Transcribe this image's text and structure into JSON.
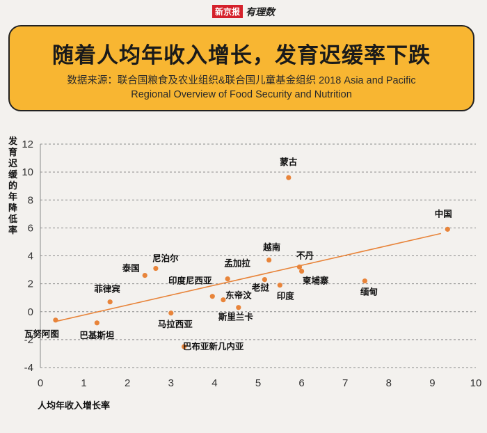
{
  "logo": {
    "brand": "新京报",
    "sub": "有理数"
  },
  "header": {
    "title": "随着人均年收入增长，发育迟缓率下跌",
    "source_line1": "数据来源：联合国粮食及农业组织&联合国儿童基金组织  2018 Asia and Pacific",
    "source_line2": "Regional Overview of Food Security and Nutrition"
  },
  "colors": {
    "point": "#e8843a",
    "trend": "#e8843a",
    "header_bg": "#f8b632",
    "page_bg": "#f3f1ee"
  },
  "chart_data": {
    "type": "scatter",
    "xlabel": "人均年收入增长率",
    "ylabel": "发育迟缓的年降低率",
    "xlim": [
      0,
      10
    ],
    "ylim": [
      -4,
      12
    ],
    "xticks": [
      0,
      1,
      2,
      3,
      4,
      5,
      6,
      7,
      8,
      9,
      10
    ],
    "yticks": [
      -4,
      -2,
      0,
      2,
      4,
      6,
      8,
      10,
      12
    ],
    "grid": "horizontal-dashed",
    "points": [
      {
        "name": "瓦努阿图",
        "x": 0.35,
        "y": -0.6
      },
      {
        "name": "巴基斯坦",
        "x": 1.3,
        "y": -0.8
      },
      {
        "name": "菲律宾",
        "x": 1.6,
        "y": 0.7
      },
      {
        "name": "泰国",
        "x": 2.4,
        "y": 2.6
      },
      {
        "name": "尼泊尔",
        "x": 2.65,
        "y": 3.1
      },
      {
        "name": "马拉西亚",
        "x": 3.0,
        "y": -0.1
      },
      {
        "name": "巴布亚新几内亚",
        "x": 3.3,
        "y": -2.5
      },
      {
        "name": "印度尼西亚",
        "x": 3.95,
        "y": 1.1
      },
      {
        "name": "东帝汶",
        "x": 4.2,
        "y": 0.85
      },
      {
        "name": "孟加拉",
        "x": 4.3,
        "y": 2.35
      },
      {
        "name": "斯里兰卡",
        "x": 4.55,
        "y": 0.3
      },
      {
        "name": "老挝",
        "x": 5.15,
        "y": 2.3
      },
      {
        "name": "越南",
        "x": 5.25,
        "y": 3.7
      },
      {
        "name": "印度",
        "x": 5.5,
        "y": 1.9
      },
      {
        "name": "蒙古",
        "x": 5.7,
        "y": 9.6
      },
      {
        "name": "不丹",
        "x": 5.95,
        "y": 3.2
      },
      {
        "name": "柬埔寨",
        "x": 6.0,
        "y": 2.9
      },
      {
        "name": "缅甸",
        "x": 7.45,
        "y": 2.2
      },
      {
        "name": "中国",
        "x": 9.35,
        "y": 5.9
      }
    ],
    "trendline": {
      "x": [
        0.35,
        9.2
      ],
      "y": [
        -0.7,
        5.6
      ]
    }
  }
}
